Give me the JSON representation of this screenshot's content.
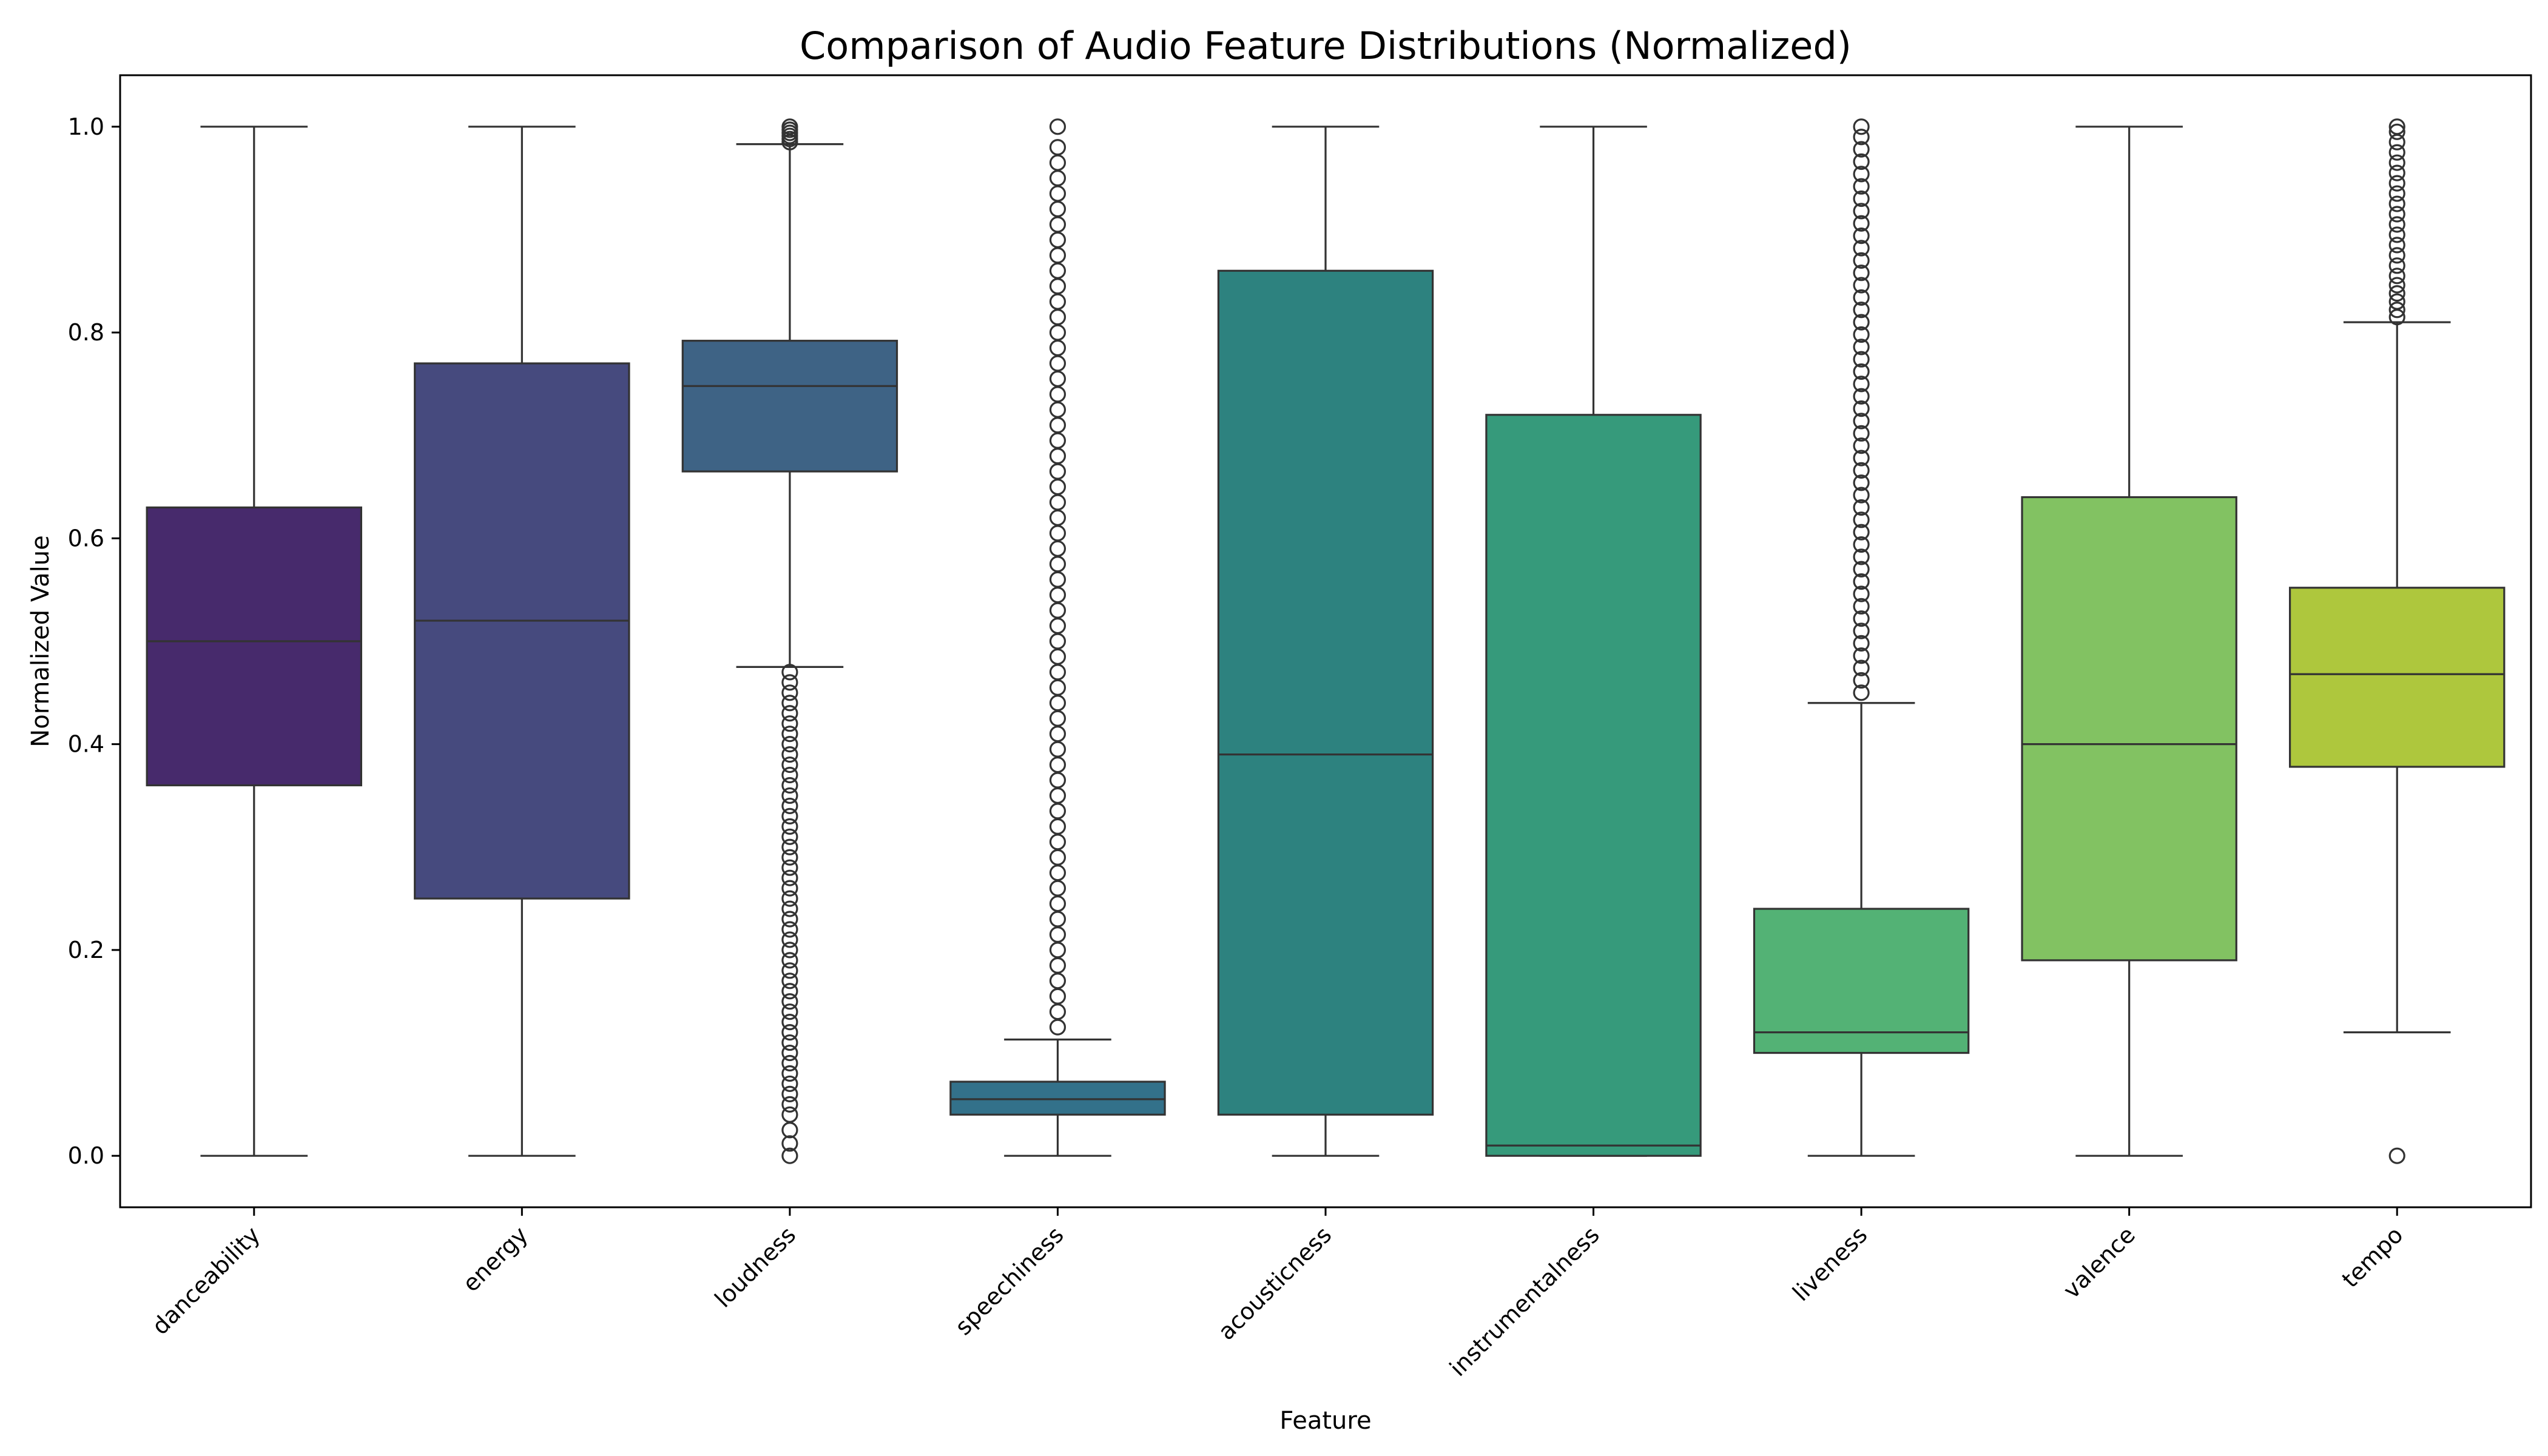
{
  "chart_data": {
    "type": "box",
    "title": "Comparison of Audio Feature Distributions (Normalized)",
    "xlabel": "Feature",
    "ylabel": "Normalized Value",
    "ylim": [
      -0.05,
      1.05
    ],
    "yticks": [
      0.0,
      0.2,
      0.4,
      0.6,
      0.8,
      1.0
    ],
    "ytick_labels": [
      "0.0",
      "0.2",
      "0.4",
      "0.6",
      "0.8",
      "1.0"
    ],
    "grid": false,
    "legend": "none",
    "categories": [
      "danceability",
      "energy",
      "loudness",
      "speechiness",
      "acousticness",
      "instrumentalness",
      "liveness",
      "valence",
      "tempo"
    ],
    "boxes": [
      {
        "name": "danceability",
        "color": "#472a6c",
        "whisker_low": 0.0,
        "q1": 0.36,
        "median": 0.5,
        "q3": 0.63,
        "whisker_high": 1.0,
        "outliers": []
      },
      {
        "name": "energy",
        "color": "#464a7e",
        "whisker_low": 0.0,
        "q1": 0.25,
        "median": 0.52,
        "q3": 0.77,
        "whisker_high": 1.0,
        "outliers": []
      },
      {
        "name": "loudness",
        "color": "#3e6385",
        "whisker_low": 0.475,
        "q1": 0.665,
        "median": 0.748,
        "q3": 0.792,
        "whisker_high": 0.983,
        "outliers": [
          0.0,
          0.012,
          0.025,
          0.04,
          0.05,
          0.06,
          0.07,
          0.08,
          0.09,
          0.1,
          0.11,
          0.12,
          0.13,
          0.14,
          0.15,
          0.16,
          0.17,
          0.18,
          0.19,
          0.2,
          0.21,
          0.22,
          0.23,
          0.24,
          0.25,
          0.26,
          0.27,
          0.28,
          0.29,
          0.3,
          0.31,
          0.32,
          0.33,
          0.34,
          0.35,
          0.36,
          0.37,
          0.38,
          0.39,
          0.4,
          0.41,
          0.42,
          0.43,
          0.44,
          0.45,
          0.46,
          0.47,
          0.985,
          0.988,
          0.991,
          0.994,
          0.997,
          1.0
        ]
      },
      {
        "name": "speechiness",
        "color": "#33718a",
        "whisker_low": 0.0,
        "q1": 0.04,
        "median": 0.055,
        "q3": 0.072,
        "whisker_high": 0.113,
        "outliers": [
          0.125,
          0.14,
          0.155,
          0.17,
          0.185,
          0.2,
          0.215,
          0.23,
          0.245,
          0.26,
          0.275,
          0.29,
          0.305,
          0.32,
          0.335,
          0.35,
          0.365,
          0.38,
          0.395,
          0.41,
          0.425,
          0.44,
          0.455,
          0.47,
          0.485,
          0.5,
          0.515,
          0.53,
          0.545,
          0.56,
          0.575,
          0.59,
          0.605,
          0.62,
          0.635,
          0.65,
          0.665,
          0.68,
          0.695,
          0.71,
          0.725,
          0.74,
          0.755,
          0.77,
          0.785,
          0.8,
          0.815,
          0.83,
          0.845,
          0.86,
          0.875,
          0.89,
          0.905,
          0.92,
          0.935,
          0.95,
          0.965,
          0.98,
          1.0
        ]
      },
      {
        "name": "acousticness",
        "color": "#2d827f",
        "whisker_low": 0.0,
        "q1": 0.04,
        "median": 0.39,
        "q3": 0.86,
        "whisker_high": 1.0,
        "outliers": []
      },
      {
        "name": "instrumentalness",
        "color": "#369a7b",
        "whisker_low": 0.0,
        "q1": 0.0,
        "median": 0.01,
        "q3": 0.72,
        "whisker_high": 1.0,
        "outliers": []
      },
      {
        "name": "liveness",
        "color": "#53b275",
        "whisker_low": 0.0,
        "q1": 0.1,
        "median": 0.12,
        "q3": 0.24,
        "whisker_high": 0.44,
        "outliers": [
          0.45,
          0.462,
          0.474,
          0.486,
          0.498,
          0.51,
          0.522,
          0.534,
          0.546,
          0.558,
          0.57,
          0.582,
          0.594,
          0.606,
          0.618,
          0.63,
          0.642,
          0.654,
          0.666,
          0.678,
          0.69,
          0.702,
          0.714,
          0.726,
          0.738,
          0.75,
          0.762,
          0.774,
          0.786,
          0.798,
          0.81,
          0.822,
          0.834,
          0.846,
          0.858,
          0.87,
          0.882,
          0.894,
          0.906,
          0.918,
          0.93,
          0.942,
          0.954,
          0.966,
          0.978,
          0.99,
          1.0
        ]
      },
      {
        "name": "valence",
        "color": "#82c262",
        "whisker_low": 0.0,
        "q1": 0.19,
        "median": 0.4,
        "q3": 0.64,
        "whisker_high": 1.0,
        "outliers": []
      },
      {
        "name": "tempo",
        "color": "#aec73d",
        "whisker_low": 0.12,
        "q1": 0.378,
        "median": 0.468,
        "q3": 0.552,
        "whisker_high": 0.81,
        "outliers": [
          0.0,
          0.815,
          0.822,
          0.83,
          0.838,
          0.846,
          0.855,
          0.865,
          0.875,
          0.885,
          0.895,
          0.905,
          0.915,
          0.925,
          0.935,
          0.945,
          0.955,
          0.965,
          0.975,
          0.985,
          0.995,
          1.0
        ]
      }
    ]
  }
}
